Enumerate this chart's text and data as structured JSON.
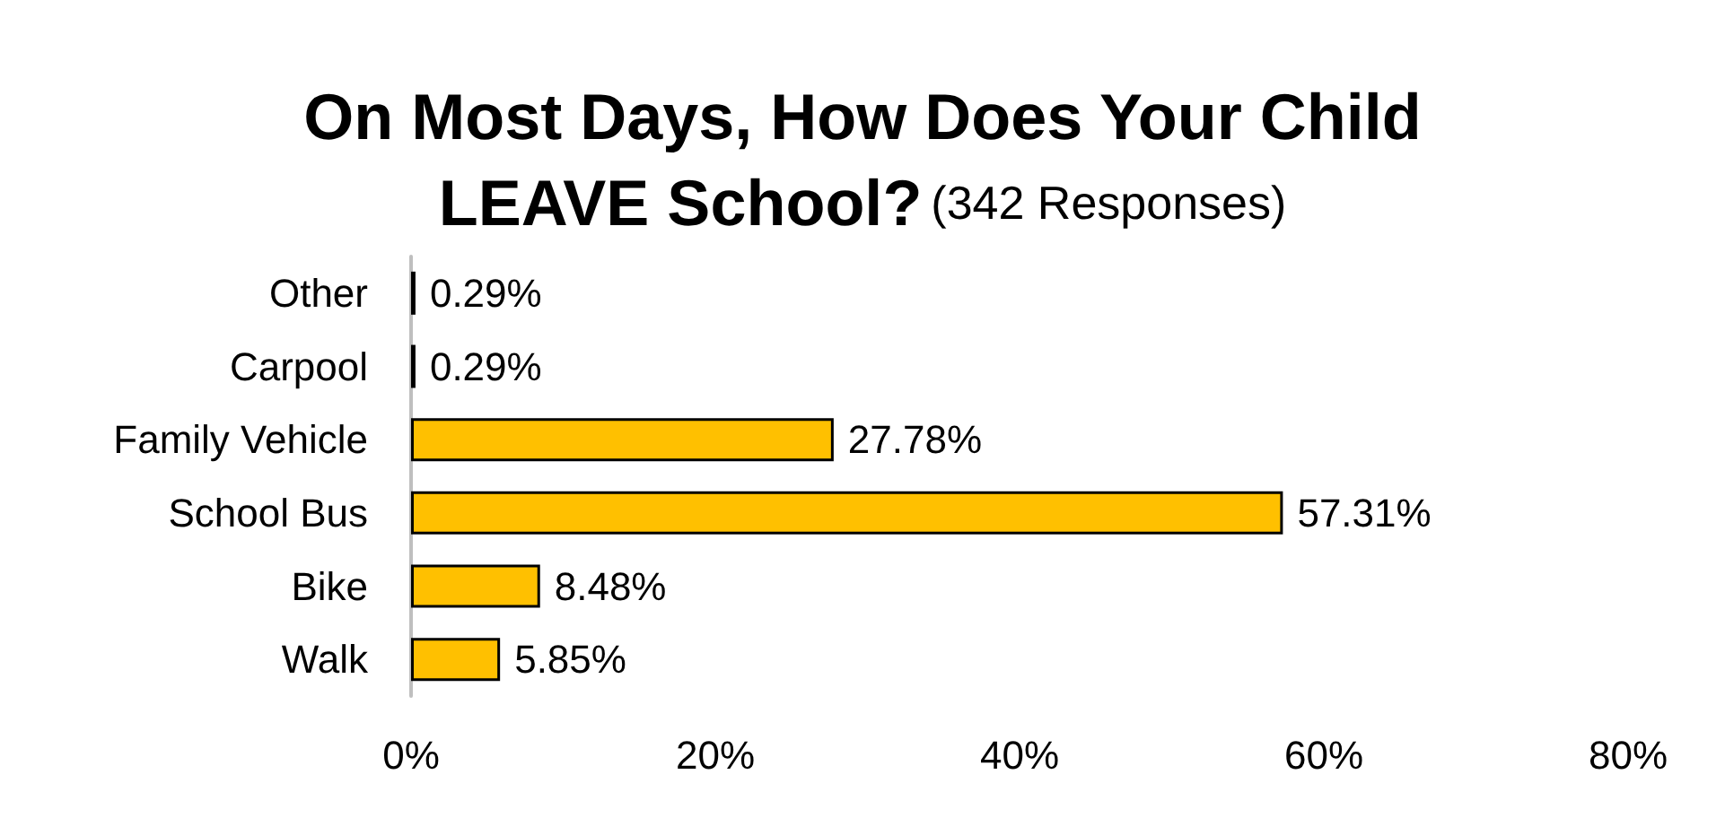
{
  "chart_data": {
    "type": "bar",
    "orientation": "horizontal",
    "title": "On Most Days, How Does Your Child LEAVE School?",
    "subtitle": "(342 Responses)",
    "categories": [
      "Other",
      "Carpool",
      "Family Vehicle",
      "School Bus",
      "Bike",
      "Walk"
    ],
    "values": [
      0.29,
      0.29,
      27.78,
      57.31,
      8.48,
      5.85
    ],
    "value_labels": [
      "0.29%",
      "0.29%",
      "27.78%",
      "57.31%",
      "8.48%",
      "5.85%"
    ],
    "color": "#ffc000",
    "xlim": [
      0,
      80
    ],
    "xticks": [
      {
        "value": 0,
        "label": "0%"
      },
      {
        "value": 20,
        "label": "20%"
      },
      {
        "value": 40,
        "label": "40%"
      },
      {
        "value": 60,
        "label": "60%"
      },
      {
        "value": 80,
        "label": "80%"
      }
    ],
    "grid": false
  }
}
